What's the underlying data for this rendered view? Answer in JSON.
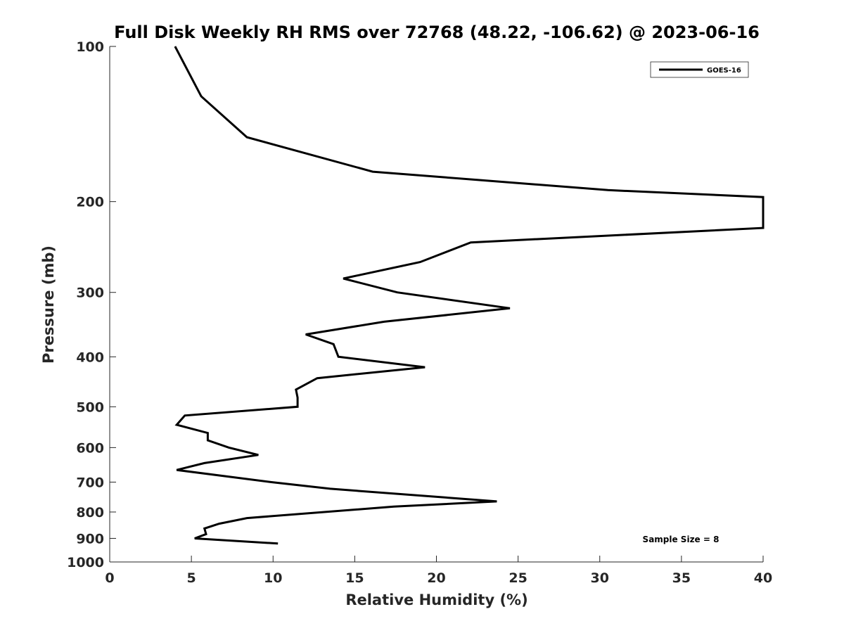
{
  "chart_data": {
    "type": "line",
    "title": "Full Disk Weekly RH RMS over 72768 (48.22, -106.62) @ 2023-06-16",
    "xlabel": "Relative Humidity (%)",
    "ylabel": "Pressure (mb)",
    "xlim": [
      0,
      40
    ],
    "ylim": [
      100,
      1000
    ],
    "yscale": "log",
    "yreversed": true,
    "xticks": [
      0,
      5,
      10,
      15,
      20,
      25,
      30,
      35,
      40
    ],
    "yticks": [
      100,
      200,
      300,
      400,
      500,
      600,
      700,
      800,
      900,
      1000
    ],
    "grid": false,
    "legend_position": "top-right",
    "series": [
      {
        "name": "GOES-16",
        "color": "#000000",
        "points": [
          {
            "x": 4.0,
            "y": 100
          },
          {
            "x": 5.6,
            "y": 125
          },
          {
            "x": 8.4,
            "y": 150
          },
          {
            "x": 16.1,
            "y": 175
          },
          {
            "x": 30.5,
            "y": 190
          },
          {
            "x": 40,
            "y": 196
          },
          {
            "x": 40,
            "y": 225
          },
          {
            "x": 22.1,
            "y": 240
          },
          {
            "x": 19.0,
            "y": 262
          },
          {
            "x": 14.3,
            "y": 282
          },
          {
            "x": 17.6,
            "y": 300
          },
          {
            "x": 24.5,
            "y": 322
          },
          {
            "x": 16.8,
            "y": 342
          },
          {
            "x": 12.0,
            "y": 362
          },
          {
            "x": 13.7,
            "y": 378
          },
          {
            "x": 14.0,
            "y": 400
          },
          {
            "x": 19.3,
            "y": 419
          },
          {
            "x": 12.7,
            "y": 440
          },
          {
            "x": 11.4,
            "y": 463
          },
          {
            "x": 11.5,
            "y": 480
          },
          {
            "x": 11.5,
            "y": 500
          },
          {
            "x": 4.6,
            "y": 520
          },
          {
            "x": 4.1,
            "y": 542
          },
          {
            "x": 6.0,
            "y": 562
          },
          {
            "x": 6.0,
            "y": 581
          },
          {
            "x": 7.3,
            "y": 600
          },
          {
            "x": 9.1,
            "y": 620
          },
          {
            "x": 5.8,
            "y": 643
          },
          {
            "x": 4.1,
            "y": 663
          },
          {
            "x": 9.9,
            "y": 700
          },
          {
            "x": 13.5,
            "y": 721
          },
          {
            "x": 23.7,
            "y": 763
          },
          {
            "x": 17.4,
            "y": 781
          },
          {
            "x": 8.4,
            "y": 822
          },
          {
            "x": 6.7,
            "y": 843
          },
          {
            "x": 5.8,
            "y": 861
          },
          {
            "x": 5.9,
            "y": 883
          },
          {
            "x": 5.2,
            "y": 900
          },
          {
            "x": 10.3,
            "y": 921
          }
        ]
      }
    ],
    "annotations": [
      {
        "text": "Sample Size = 8",
        "position": "bottom-right"
      }
    ]
  }
}
